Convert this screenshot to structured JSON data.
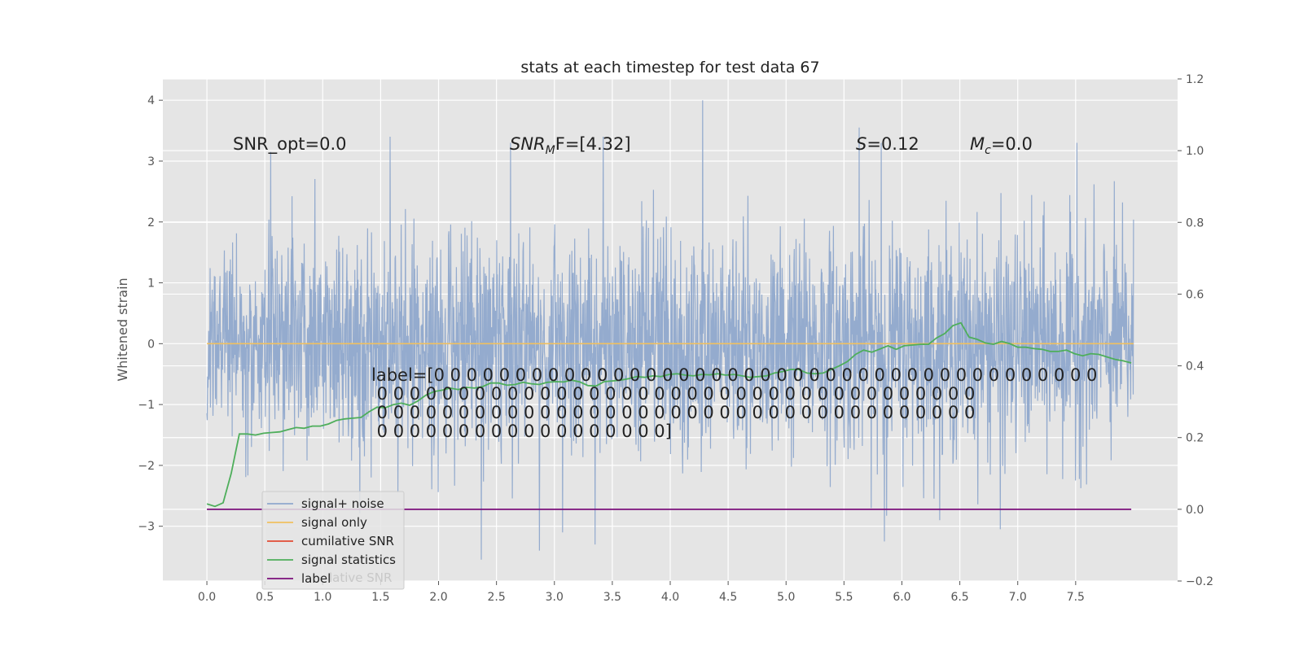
{
  "chart_data": {
    "type": "line",
    "title": "stats at each timestep for test data 67",
    "ylabel": "Whitened strain",
    "xlim": [
      -0.38,
      8.38
    ],
    "ylim_left": [
      -3.9,
      4.35
    ],
    "ylim_right": [
      -0.2,
      1.2
    ],
    "x_ticks": [
      0.0,
      0.5,
      1.0,
      1.5,
      2.0,
      2.5,
      3.0,
      3.5,
      4.0,
      4.5,
      5.0,
      5.5,
      6.0,
      6.5,
      7.0,
      7.5
    ],
    "x_tick_labels": [
      "0.0",
      "0.5",
      "1.0",
      "1.5",
      "2.0",
      "2.5",
      "3.0",
      "3.5",
      "4.0",
      "4.5",
      "5.0",
      "5.5",
      "6.0",
      "6.5",
      "7.0",
      "7.5"
    ],
    "y_left_ticks": [
      -3,
      -2,
      -1,
      0,
      1,
      2,
      3,
      4
    ],
    "y_left_tick_labels": [
      "−3",
      "−2",
      "−1",
      "0",
      "1",
      "2",
      "3",
      "4"
    ],
    "y_right_ticks": [
      -0.2,
      0.0,
      0.2,
      0.4,
      0.6,
      0.8,
      1.0,
      1.2
    ],
    "y_right_tick_labels": [
      "−0.2",
      "0.0",
      "0.2",
      "0.4",
      "0.6",
      "0.8",
      "1.0",
      "1.2"
    ],
    "grid": true,
    "legend_position": "lower-left",
    "series": [
      {
        "name": "signal+ noise",
        "axis": "left",
        "color": "#8fa8cc",
        "kind": "noise",
        "x_range": [
          0.0,
          8.0
        ],
        "amplitude_core": 1.0,
        "notable_peaks": [
          {
            "x": 0.55,
            "y": 3.15
          },
          {
            "x": 1.58,
            "y": 3.4
          },
          {
            "x": 2.62,
            "y": 3.3
          },
          {
            "x": 3.42,
            "y": 3.4
          },
          {
            "x": 4.28,
            "y": 4.0
          },
          {
            "x": 5.63,
            "y": 3.55
          },
          {
            "x": 5.82,
            "y": 3.3
          },
          {
            "x": 7.51,
            "y": 3.3
          },
          {
            "x": 2.37,
            "y": -3.55
          },
          {
            "x": 2.87,
            "y": -3.4
          },
          {
            "x": 3.35,
            "y": -3.3
          },
          {
            "x": 5.85,
            "y": -3.25
          },
          {
            "x": 6.85,
            "y": -3.05
          },
          {
            "x": 3.07,
            "y": -3.1
          }
        ]
      },
      {
        "name": "signal only",
        "axis": "left",
        "color": "#f0c060",
        "x": [
          0.0,
          8.0
        ],
        "y": [
          0.0,
          0.0
        ]
      },
      {
        "name": "cumilative SNR",
        "axis": "right",
        "color": "#e24a33",
        "x": [],
        "y": []
      },
      {
        "name": "signal statistics",
        "axis": "right",
        "color": "#4eae5b",
        "x": [
          0.0,
          0.07,
          0.14,
          0.21,
          0.28,
          0.35,
          0.42,
          0.49,
          0.56,
          0.63,
          0.7,
          0.77,
          0.84,
          0.91,
          0.98,
          1.05,
          1.12,
          1.19,
          1.26,
          1.33,
          1.4,
          1.47,
          1.54,
          1.61,
          1.68,
          1.75,
          1.82,
          1.89,
          1.96,
          2.03,
          2.1,
          2.17,
          2.24,
          2.31,
          2.38,
          2.45,
          2.52,
          2.59,
          2.66,
          2.73,
          2.8,
          2.87,
          2.94,
          3.01,
          3.08,
          3.15,
          3.22,
          3.29,
          3.36,
          3.43,
          3.5,
          3.57,
          3.64,
          3.71,
          3.78,
          3.85,
          3.92,
          3.99,
          4.06,
          4.13,
          4.2,
          4.27,
          4.34,
          4.41,
          4.48,
          4.55,
          4.62,
          4.69,
          4.76,
          4.83,
          4.9,
          4.97,
          5.04,
          5.11,
          5.18,
          5.25,
          5.32,
          5.39,
          5.46,
          5.53,
          5.6,
          5.67,
          5.74,
          5.81,
          5.88,
          5.95,
          6.02,
          6.09,
          6.16,
          6.23,
          6.3,
          6.37,
          6.44,
          6.51,
          6.58,
          6.65,
          6.72,
          6.79,
          6.86,
          6.93,
          7.0,
          7.07,
          7.14,
          7.21,
          7.28,
          7.35,
          7.42,
          7.49,
          7.56,
          7.63,
          7.7,
          7.77,
          7.84,
          7.91,
          7.98
        ],
        "y": [
          0.015,
          0.008,
          0.018,
          0.1,
          0.21,
          0.21,
          0.207,
          0.212,
          0.214,
          0.216,
          0.222,
          0.228,
          0.226,
          0.232,
          0.232,
          0.238,
          0.248,
          0.252,
          0.254,
          0.256,
          0.272,
          0.285,
          0.283,
          0.292,
          0.296,
          0.29,
          0.302,
          0.318,
          0.328,
          0.332,
          0.338,
          0.334,
          0.34,
          0.338,
          0.342,
          0.352,
          0.352,
          0.346,
          0.348,
          0.354,
          0.35,
          0.348,
          0.354,
          0.356,
          0.355,
          0.36,
          0.355,
          0.345,
          0.344,
          0.356,
          0.358,
          0.36,
          0.364,
          0.37,
          0.368,
          0.372,
          0.37,
          0.376,
          0.378,
          0.374,
          0.372,
          0.376,
          0.375,
          0.378,
          0.374,
          0.376,
          0.372,
          0.368,
          0.37,
          0.372,
          0.38,
          0.384,
          0.39,
          0.39,
          0.38,
          0.378,
          0.38,
          0.39,
          0.4,
          0.412,
          0.432,
          0.444,
          0.438,
          0.447,
          0.456,
          0.446,
          0.456,
          0.458,
          0.46,
          0.46,
          0.478,
          0.49,
          0.512,
          0.52,
          0.48,
          0.474,
          0.464,
          0.46,
          0.468,
          0.462,
          0.452,
          0.452,
          0.448,
          0.446,
          0.44,
          0.44,
          0.444,
          0.434,
          0.428,
          0.434,
          0.432,
          0.425,
          0.418,
          0.414,
          0.408
        ]
      },
      {
        "name": "label",
        "axis": "right",
        "color": "#7b0f7b",
        "x": [
          0.0,
          7.98
        ],
        "y": [
          0.0,
          0.0
        ]
      }
    ],
    "annotations": [
      {
        "text": "SNR_opt=0.0"
      },
      {
        "text_parts": [
          "SNR",
          "M",
          "F=[4.32]"
        ]
      },
      {
        "text_parts": [
          "S",
          "=0.12"
        ]
      },
      {
        "text_parts": [
          "M",
          "c",
          "=0.0"
        ]
      },
      {
        "lines": [
          "label=[0 0 0 0 0 0 0 0 0 0 0 0 0 0 0 0 0 0 0 0 0 0 0 0 0 0 0 0 0 0 0 0 0 0 0 0 0 0 0 0 0",
          " 0 0 0 0 0 0 0 0 0 0 0 0 0 0 0 0 0 0 0 0 0 0 0 0 0 0 0 0 0 0 0 0 0 0 0 0 0",
          " 0 0 0 0 0 0 0 0 0 0 0 0 0 0 0 0 0 0 0 0 0 0 0 0 0 0 0 0 0 0 0 0 0 0 0 0 0",
          " 0 0 0 0 0 0 0 0 0 0 0 0 0 0 0 0 0 0]"
        ]
      }
    ],
    "legend_overlay_text": "lative SNR",
    "colors": {
      "background": "#e5e5e5",
      "grid": "#ffffff",
      "axis_text": "#555555",
      "text": "#222222"
    }
  }
}
